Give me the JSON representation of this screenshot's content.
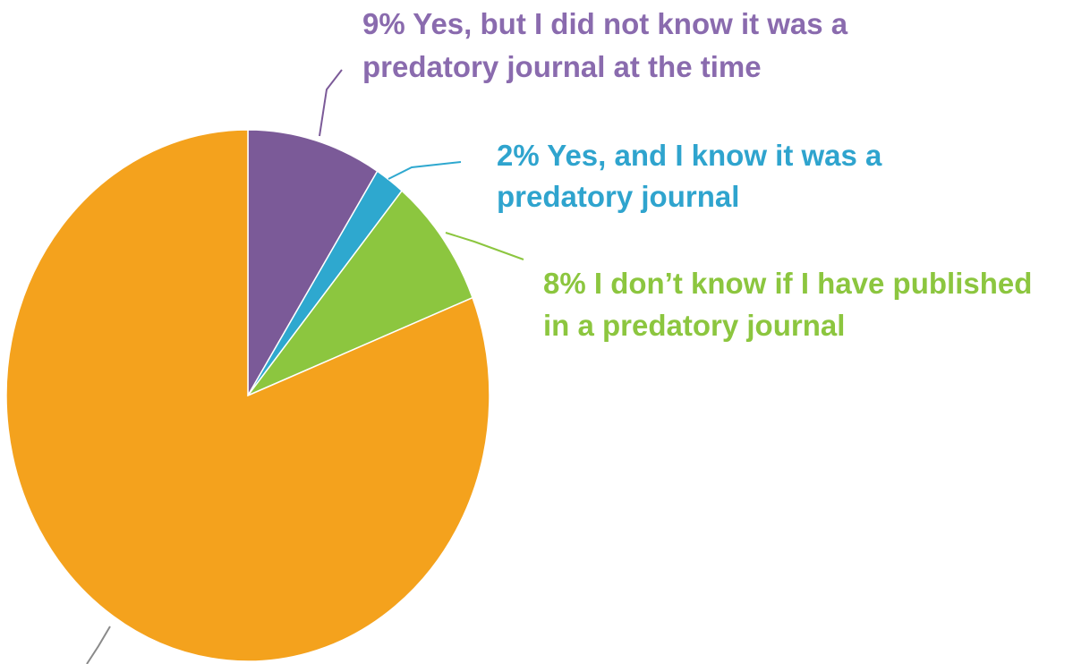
{
  "chart_data": {
    "type": "pie",
    "start_angle_deg": 0,
    "direction": "clockwise",
    "slices": [
      {
        "value": 9,
        "color": "#7B5A98",
        "label_lines": [
          "9% Yes, but I did not know it was a",
          "predatory journal at the time"
        ],
        "label_color": "#8A6BAE"
      },
      {
        "value": 2,
        "color": "#2EA8CF",
        "label_lines": [
          "2% Yes, and I know it was a",
          "predatory journal"
        ],
        "label_color": "#2FA4CE"
      },
      {
        "value": 8,
        "color": "#8CC63F",
        "label_lines": [
          "8% I don’t know if I have published",
          "in a predatory journal"
        ],
        "label_color": "#8CC63F"
      },
      {
        "value": 81,
        "color": "#F4A21D",
        "label_lines": [],
        "label_color": "#F4A21D"
      }
    ]
  }
}
